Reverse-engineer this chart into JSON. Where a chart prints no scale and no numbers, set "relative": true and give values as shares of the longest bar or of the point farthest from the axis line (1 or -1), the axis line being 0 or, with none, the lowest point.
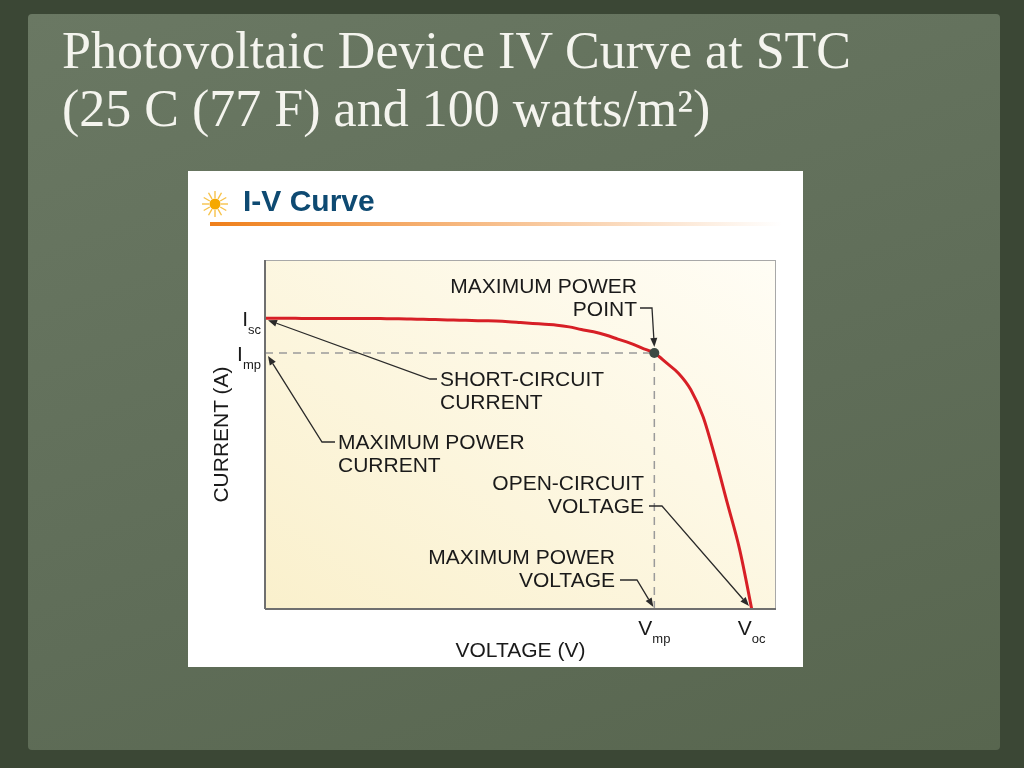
{
  "chart_data": {
    "type": "line",
    "title": "Photovoltaic Device IV Curve at STC\n(25 C (77 F) and 100 watts/m²)",
    "subtitle": "I-V Curve",
    "xlabel": "VOLTAGE (V)",
    "ylabel": "CURRENT (A)",
    "relative": true,
    "categories": [
      null,
      null,
      null,
      null,
      null,
      null,
      null,
      null,
      null,
      null,
      null,
      null,
      null,
      null,
      null,
      null,
      null,
      null,
      null,
      null,
      null,
      null,
      null,
      null,
      null,
      null,
      null,
      null,
      null,
      null,
      null,
      null,
      "V$_{mp}$",
      null,
      null,
      null,
      null,
      null,
      null,
      null,
      "V$_{oc}$",
      null,
      null
    ],
    "series": [
      {
        "color": "#d71f26",
        "values": [
          1,
          1,
          1,
          0.999,
          0.999,
          0.999,
          0.999,
          0.999,
          0.999,
          0.999,
          0.998,
          0.998,
          0.997,
          0.996,
          0.995,
          0.994,
          0.993,
          0.992,
          0.991,
          0.99,
          0.988,
          0.985,
          0.982,
          0.979,
          0.976,
          0.97,
          0.961,
          0.953,
          0.942,
          0.928,
          0.914,
          0.897,
          0.88,
          0.846,
          0.81,
          0.754,
          0.662,
          0.521,
          0.364,
          0.207,
          0,
          null,
          null
        ]
      },
      {
        "type": "scatter",
        "color": "#3d4a44",
        "marker": "circle",
        "values": [
          null,
          null,
          null,
          null,
          null,
          null,
          null,
          null,
          null,
          null,
          null,
          null,
          null,
          null,
          null,
          null,
          null,
          null,
          null,
          null,
          null,
          null,
          null,
          null,
          null,
          null,
          null,
          null,
          null,
          null,
          null,
          null,
          0.88,
          null,
          null,
          null,
          null,
          null,
          null,
          null,
          null,
          null,
          null
        ]
      }
    ],
    "ref_lines": [
      {
        "axis": "y",
        "value": 0.88,
        "label": "I$_{mp}$",
        "color": "#9a9a9a",
        "line_style": "dashed"
      },
      {
        "axis": "x",
        "value": "V$_{mp}$",
        "color": "#9a9a9a",
        "line_style": "dashed"
      }
    ],
    "annotations": [
      "I$_{sc}$",
      {
        "text": "MAXIMUM POWER\nPOINT",
        "x": "V$_{mp}$",
        "y": 0.88
      },
      {
        "text": "SHORT-CIRCUIT\nCURRENT",
        "y": 1
      },
      "MAXIMUM POWER\nCURRENT",
      "OPEN-CIRCUIT\nVOLTAGE",
      {
        "text": "MAXIMUM POWER\nVOLTAGE",
        "x": "V$_{mp}$",
        "y": 0
      }
    ]
  }
}
